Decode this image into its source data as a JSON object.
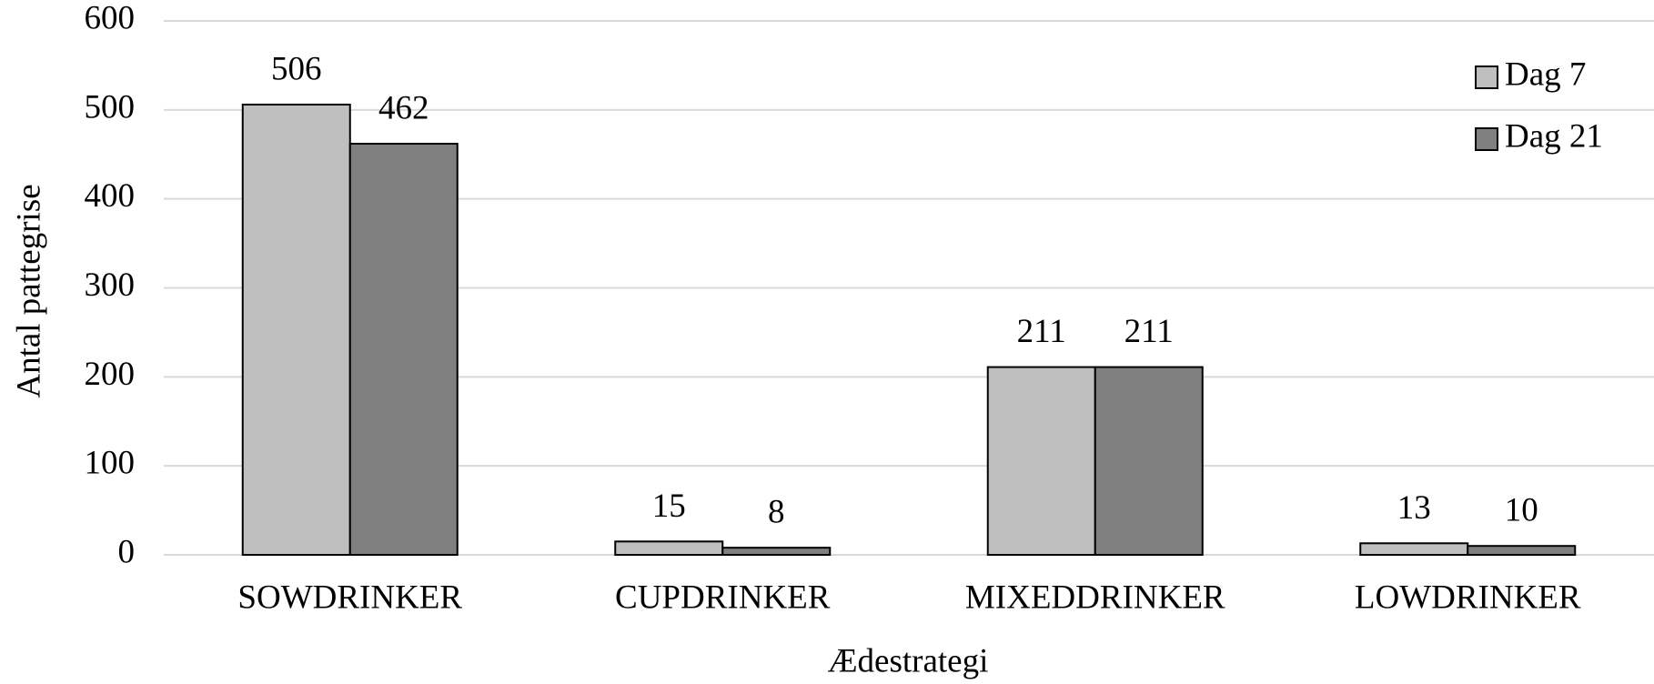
{
  "chart_data": {
    "type": "bar",
    "x_label": "Ædestrategi",
    "y_label": "Antal pattegrise",
    "categories": [
      "SOWDRINKER",
      "CUPDRINKER",
      "MIXEDDRINKER",
      "LOWDRINKER"
    ],
    "series": [
      {
        "name": "Dag 7",
        "color": "#bfbfbf",
        "values": [
          506,
          15,
          211,
          13
        ]
      },
      {
        "name": "Dag 21",
        "color": "#808080",
        "values": [
          462,
          8,
          211,
          10
        ]
      }
    ],
    "ylim": [
      0,
      600
    ],
    "yticks": [
      0,
      100,
      200,
      300,
      400,
      500,
      600
    ],
    "grid": true,
    "legend": "top-right"
  }
}
